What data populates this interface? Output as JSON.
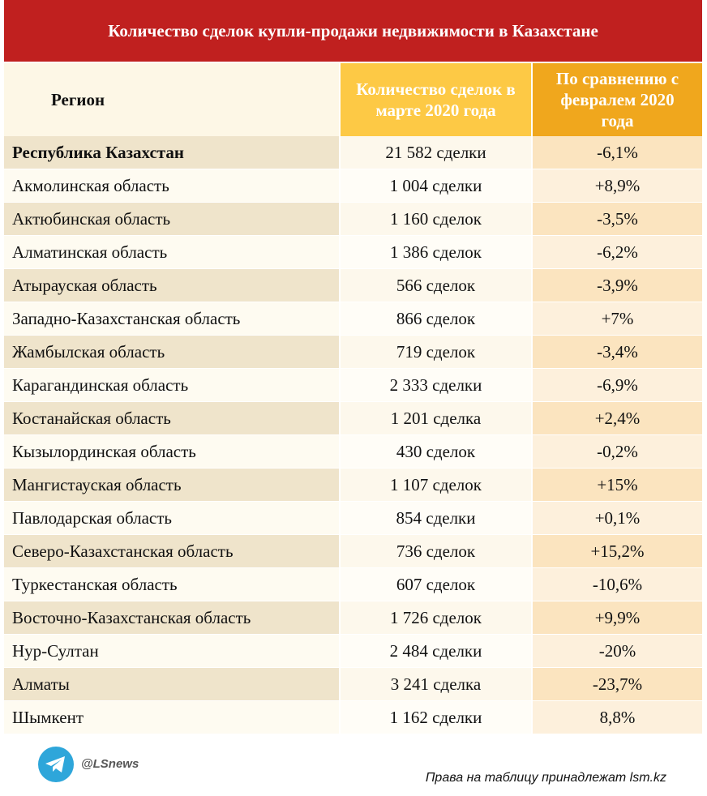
{
  "header": {
    "title": "Количество сделок купли-продажи недвижимости в Казахстане"
  },
  "table": {
    "columns": [
      "Регион",
      "Количество сделок в марте 2020 года",
      "По сравнению с февралем 2020 года"
    ],
    "rows": [
      [
        "Республика Казахстан",
        "21 582 сделки",
        "-6,1%"
      ],
      [
        "Акмолинская область",
        "1 004 сделки",
        "+8,9%"
      ],
      [
        "Актюбинская область",
        "1 160 сделок",
        "-3,5%"
      ],
      [
        "Алматинская область",
        "1 386 сделок",
        "-6,2%"
      ],
      [
        "Атырауская область",
        "566 сделок",
        "-3,9%"
      ],
      [
        "Западно-Казахстанская область",
        "866 сделок",
        "+7%"
      ],
      [
        "Жамбылская область",
        "719 сделок",
        "-3,4%"
      ],
      [
        "Карагандинская область",
        "2 333 сделки",
        "-6,9%"
      ],
      [
        "Костанайская область",
        "1 201 сделка",
        "+2,4%"
      ],
      [
        "Кызылординская область",
        "430 сделок",
        "-0,2%"
      ],
      [
        "Мангистауская область",
        "1 107 сделок",
        "+15%"
      ],
      [
        "Павлодарская область",
        "854 сделки",
        "+0,1%"
      ],
      [
        "Северо-Казахстанская область",
        "736 сделок",
        "+15,2%"
      ],
      [
        "Туркестанская область",
        "607 сделок",
        "-10,6%"
      ],
      [
        "Восточно-Казахстанская область",
        "1 726 сделок",
        "+9,9%"
      ],
      [
        "Нур-Султан",
        "2 484 сделки",
        "-20%"
      ],
      [
        "Алматы",
        "3 241 сделка",
        "-23,7%"
      ],
      [
        "Шымкент",
        "1 162 сделки",
        "8,8%"
      ]
    ]
  },
  "footer": {
    "handle": "@LSnews",
    "credit": "Права на таблицу принадлежат lsm.kz"
  }
}
